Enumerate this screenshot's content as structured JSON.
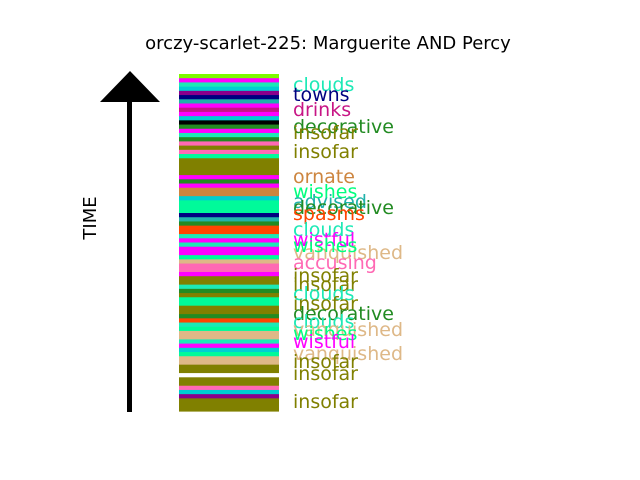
{
  "chart_data": {
    "type": "bar",
    "orientation": "stacked-timeline",
    "title": "orczy-scarlet-225: Marguerite AND Percy",
    "ylabel": "TIME",
    "colors": {
      "clouds": "#1de9b6",
      "towns": "#000080",
      "drinks": "#c71585",
      "decorative": "#228b22",
      "insofar": "#808000",
      "ornate": "#cd853f",
      "wishes": "#00ff7f",
      "advised": "#20b2aa",
      "spasms": "#ff4500",
      "wistful": "#ff00ff",
      "vanquished": "#deb887",
      "accusing": "#ff69b4"
    },
    "stripes": [
      "#7cfc00",
      "#ff00ff",
      "#1de9b6",
      "#00ced1",
      "#8b008b",
      "#000080",
      "#20b2aa",
      "#ff00ff",
      "#c71585",
      "#ff00ff",
      "#00ced1",
      "#000000",
      "#228b22",
      "#ff00ff",
      "#1de9b6",
      "#228b22",
      "#ff69b4",
      "#808000",
      "#ff69b4",
      "#00fa9a",
      "#808000",
      "#808000",
      "#808000",
      "#808000",
      "#ff00ff",
      "#228b22",
      "#ff00ff",
      "#cd853f",
      "#cd853f",
      "#00ced1",
      "#00fa9a",
      "#00fa9a",
      "#00fa9a",
      "#000080",
      "#20b2aa",
      "#228b22",
      "#ff4500",
      "#ff4500",
      "#1de9b6",
      "#ff00ff",
      "#1de9b6",
      "#ff00ff",
      "#ff00ff",
      "#00fa9a",
      "#deb887",
      "#ff69b4",
      "#ff69b4",
      "#ff00ff",
      "#808000",
      "#808000",
      "#1de9b6",
      "#228b22",
      "#808000",
      "#00fa9a",
      "#00fa9a",
      "#808000",
      "#808000",
      "#228b22",
      "#ff4500",
      "#1de9b6",
      "#00fa9a",
      "#deb887",
      "#deb887",
      "#1de9b6",
      "#ff00ff",
      "#00ced1",
      "#00fa9a",
      "#deb887",
      "#deb887",
      "#808000",
      "#808000",
      "#ffffff",
      "#808000",
      "#808000",
      "#ff69b4",
      "#00ced1",
      "#8b008b",
      "#808000",
      "#808000",
      "#808000"
    ],
    "labels": [
      {
        "text": "clouds",
        "key": "clouds"
      },
      {
        "text": "towns",
        "key": "towns"
      },
      {
        "text": "drinks",
        "key": "drinks"
      },
      {
        "text": "decorative",
        "key": "decorative"
      },
      {
        "text": "insofar",
        "key": "insofar"
      },
      {
        "text": "insofar",
        "key": "insofar"
      },
      {
        "text": "ornate",
        "key": "ornate"
      },
      {
        "text": "wishes",
        "key": "wishes"
      },
      {
        "text": "advised",
        "key": "advised"
      },
      {
        "text": "decorative",
        "key": "decorative"
      },
      {
        "text": "spasms",
        "key": "spasms"
      },
      {
        "text": "clouds",
        "key": "clouds"
      },
      {
        "text": "wistful",
        "key": "wistful"
      },
      {
        "text": "vanquished",
        "key": "vanquished"
      },
      {
        "text": "wishes",
        "key": "wishes"
      },
      {
        "text": "accusing",
        "key": "accusing"
      },
      {
        "text": "insofar",
        "key": "insofar"
      },
      {
        "text": "insofar",
        "key": "insofar"
      },
      {
        "text": "clouds",
        "key": "clouds"
      },
      {
        "text": "insofar",
        "key": "insofar"
      },
      {
        "text": "decorative",
        "key": "decorative"
      },
      {
        "text": "clouds",
        "key": "clouds"
      },
      {
        "text": "vanquished",
        "key": "vanquished"
      },
      {
        "text": "wishes",
        "key": "wishes"
      },
      {
        "text": "wistful",
        "key": "wistful"
      },
      {
        "text": "vanquished",
        "key": "vanquished"
      },
      {
        "text": "insofar",
        "key": "insofar"
      },
      {
        "text": "insofar",
        "key": "insofar"
      },
      {
        "text": "insofar",
        "key": "insofar"
      }
    ]
  }
}
